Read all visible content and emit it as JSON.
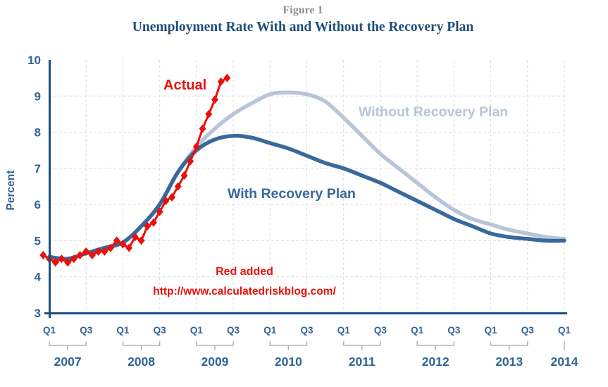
{
  "figure": {
    "label": "Figure 1",
    "title": "Unemployment Rate With and Without the Recovery Plan"
  },
  "colors": {
    "axis": "#1a4f80",
    "tick_text": "#2f6496",
    "title_text": "#1f4e79",
    "figure_label_gray": "#8d9096",
    "grid": "#dcdddf",
    "year_bracket": "#a9b6c3",
    "series_without": "#b8c5d9",
    "series_with": "#39689c",
    "series_actual": "#e8110d"
  },
  "chart_data": {
    "type": "line",
    "title": "Unemployment Rate With and Without the Recovery Plan",
    "ylabel": "Percent",
    "ylim": [
      3,
      10
    ],
    "yticks": [
      10,
      9,
      8,
      7,
      6,
      5,
      4,
      3
    ],
    "grid": "light dashed; horizontal at 4-9, vertical at every Q1 and Q3",
    "legend_position": "in-plot text labels",
    "x_axis": {
      "quarter_tick_labels": [
        "Q1",
        "Q3"
      ],
      "years": [
        "2007",
        "2008",
        "2009",
        "2010",
        "2011",
        "2012",
        "2013",
        "2014"
      ],
      "range": "2007 Q1 through 2014 Q1, tick labels every other quarter"
    },
    "series": [
      {
        "name": "Without Recovery Plan",
        "color": "#b8c5d9",
        "cadence": "quarterly",
        "start": "2007 Q1",
        "values": [
          4.55,
          4.5,
          4.65,
          4.8,
          4.95,
          5.4,
          6.0,
          6.9,
          7.6,
          8.1,
          8.5,
          8.8,
          9.05,
          9.1,
          9.05,
          8.85,
          8.4,
          7.9,
          7.4,
          7.0,
          6.6,
          6.2,
          5.85,
          5.6,
          5.45,
          5.3,
          5.2,
          5.1,
          5.05
        ]
      },
      {
        "name": "With Recovery Plan",
        "color": "#39689c",
        "cadence": "quarterly",
        "start": "2007 Q1",
        "values": [
          4.55,
          4.5,
          4.65,
          4.8,
          4.95,
          5.4,
          6.0,
          6.9,
          7.5,
          7.8,
          7.9,
          7.85,
          7.7,
          7.55,
          7.35,
          7.15,
          7.0,
          6.8,
          6.6,
          6.35,
          6.1,
          5.85,
          5.6,
          5.4,
          5.2,
          5.1,
          5.05,
          5.0,
          5.0
        ]
      },
      {
        "name": "Actual",
        "color": "#e8110d",
        "cadence": "monthly",
        "start": "2006-12",
        "marker": "diamond",
        "values": [
          4.6,
          4.5,
          4.4,
          4.5,
          4.4,
          4.5,
          4.6,
          4.7,
          4.6,
          4.7,
          4.7,
          4.8,
          5.0,
          4.9,
          4.8,
          5.1,
          5.0,
          5.4,
          5.5,
          5.8,
          6.1,
          6.2,
          6.5,
          6.8,
          7.2,
          7.6,
          8.1,
          8.5,
          8.9,
          9.4,
          9.5
        ]
      }
    ],
    "annotations": [
      {
        "text": "Red added",
        "color": "#e8110d"
      },
      {
        "text": "http://www.calculatedriskblog.com/",
        "color": "#e8110d"
      }
    ]
  }
}
